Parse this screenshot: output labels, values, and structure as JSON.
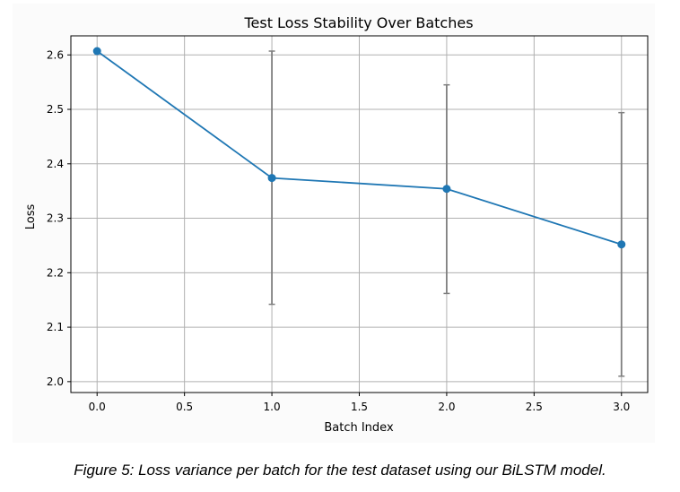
{
  "chart_data": {
    "type": "line",
    "title": "Test Loss Stability Over Batches",
    "xlabel": "Batch Index",
    "ylabel": "Loss",
    "xlim": [
      -0.15,
      3.15
    ],
    "ylim": [
      1.98,
      2.635
    ],
    "xticks": [
      0.0,
      0.5,
      1.0,
      1.5,
      2.0,
      2.5,
      3.0
    ],
    "xtick_labels": [
      "0.0",
      "0.5",
      "1.0",
      "1.5",
      "2.0",
      "2.5",
      "3.0"
    ],
    "yticks": [
      2.0,
      2.1,
      2.2,
      2.3,
      2.4,
      2.5,
      2.6
    ],
    "ytick_labels": [
      "2.0",
      "2.1",
      "2.2",
      "2.3",
      "2.4",
      "2.5",
      "2.6"
    ],
    "grid": true,
    "x": [
      0,
      1,
      2,
      3
    ],
    "series": [
      {
        "values": [
          2.607,
          2.374,
          2.354,
          2.252
        ],
        "error_lower": [
          2.607,
          2.142,
          2.162,
          2.01
        ],
        "error_upper": [
          2.607,
          2.607,
          2.545,
          2.494
        ]
      }
    ],
    "colors": {
      "line": "#1f77b4",
      "errorbar": "#7f7f7f",
      "grid": "#b0b0b0"
    }
  },
  "caption": "Figure 5: Loss variance per batch for the test dataset using our BiLSTM model."
}
